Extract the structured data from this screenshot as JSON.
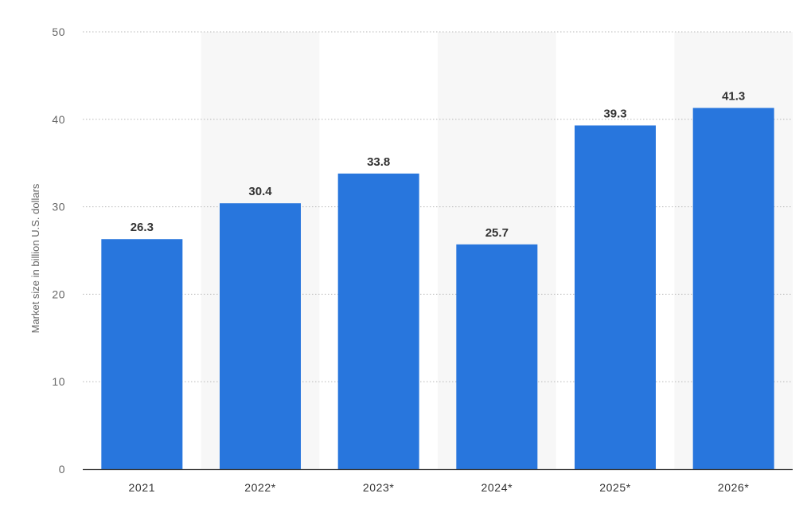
{
  "chart_data": {
    "type": "bar",
    "categories": [
      "2021",
      "2022*",
      "2023*",
      "2024*",
      "2025*",
      "2026*"
    ],
    "values": [
      26.3,
      30.4,
      33.8,
      25.7,
      39.3,
      41.3
    ],
    "value_labels": [
      "26.3",
      "30.4",
      "33.8",
      "25.7",
      "39.3",
      "41.3"
    ],
    "xlabel": "",
    "ylabel": "Market size in billion U.S. dollars",
    "ylim": [
      0,
      50
    ],
    "yticks": [
      0,
      10,
      20,
      30,
      40,
      50
    ],
    "ytick_labels": [
      "0",
      "10",
      "20",
      "30",
      "40",
      "50"
    ],
    "grid": true,
    "legend": false,
    "bar_color": "#2876DD",
    "alt_band_color": "#F7F7F7"
  }
}
